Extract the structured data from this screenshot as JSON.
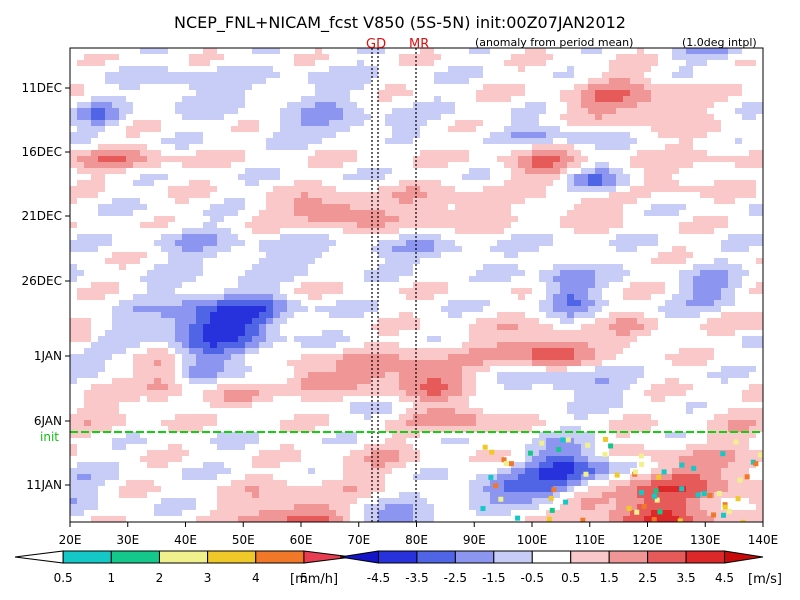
{
  "chart_data": {
    "type": "heatmap",
    "title": "NCEP_FNL+NICAM_fcst V850 (5S-5N) init:00Z07JAN2012",
    "subtitle_left": "(anomaly from period mean)",
    "subtitle_right": "(1.0deg intpl)",
    "x_ticks": [
      "20E",
      "30E",
      "40E",
      "50E",
      "60E",
      "70E",
      "80E",
      "90E",
      "100E",
      "110E",
      "120E",
      "130E",
      "140E"
    ],
    "x_range": [
      20,
      140
    ],
    "y_ticks": [
      "11DEC",
      "16DEC",
      "21DEC",
      "26DEC",
      "1JAN",
      "6JAN",
      "11JAN"
    ],
    "init_label": "init",
    "markers": [
      "GD",
      "MR"
    ],
    "precip_colorbar": {
      "labels": [
        "0.5",
        "1",
        "2",
        "3",
        "4",
        "5"
      ],
      "unit": "[mm/h]",
      "colors": [
        "#ffffff",
        "#14c8c8",
        "#14c88c",
        "#f0f08c",
        "#f0c828",
        "#f07828",
        "#e83c50"
      ]
    },
    "wind_colorbar": {
      "labels": [
        "-4.5",
        "-3.5",
        "-2.5",
        "-1.5",
        "-0.5",
        "0.5",
        "1.5",
        "2.5",
        "3.5",
        "4.5"
      ],
      "unit": "[m/s]",
      "colors": [
        "#1414c8",
        "#2832dc",
        "#5064e6",
        "#8c96f0",
        "#c8cdf8",
        "#ffffff",
        "#fac8c8",
        "#f09696",
        "#e65a5a",
        "#dc2828",
        "#c80a0a"
      ]
    }
  }
}
